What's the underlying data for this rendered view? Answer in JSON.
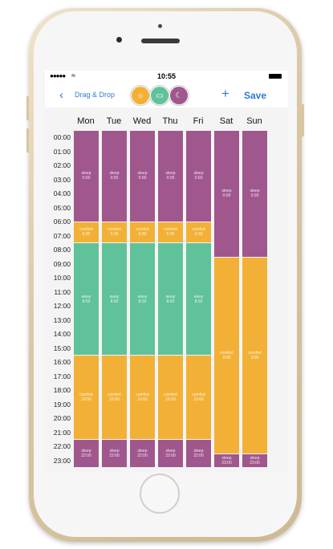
{
  "status_bar": {
    "signal": "●●●●●",
    "wifi": "≈",
    "time": "10:55"
  },
  "nav": {
    "back_label": "Drag & Drop",
    "add_label": "+",
    "save_label": "Save"
  },
  "modes": [
    {
      "name": "comfort",
      "color": "#f2b136",
      "icon": "sun-icon",
      "glyph": "☼"
    },
    {
      "name": "away",
      "color": "#5fc29b",
      "icon": "suitcase-icon",
      "glyph": "▭"
    },
    {
      "name": "sleep",
      "color": "#a0578d",
      "icon": "moon-icon",
      "glyph": "☾"
    }
  ],
  "colors": {
    "comfort": "#f2b136",
    "away": "#5fc29b",
    "sleep": "#a0578d",
    "accent": "#2d7bd6"
  },
  "days": [
    "Mon",
    "Tue",
    "Wed",
    "Thu",
    "Fri",
    "Sat",
    "Sun"
  ],
  "hours": [
    "00:00",
    "01:00",
    "02:00",
    "03:00",
    "04:00",
    "05:00",
    "06:00",
    "07:00",
    "08:00",
    "09:00",
    "10:00",
    "11:00",
    "12:00",
    "13:00",
    "14:00",
    "15:00",
    "16:00",
    "17:00",
    "18:00",
    "19:00",
    "20:00",
    "21:00",
    "22:00",
    "23:00"
  ],
  "schedule": {
    "weekday": [
      {
        "mode": "sleep",
        "label": "sleep",
        "time": "0:00",
        "start": 0,
        "end": 6.5
      },
      {
        "mode": "comfort",
        "label": "comfort",
        "time": "6:30",
        "start": 6.5,
        "end": 8
      },
      {
        "mode": "away",
        "label": "away",
        "time": "8:00",
        "start": 8,
        "end": 16
      },
      {
        "mode": "comfort",
        "label": "comfort",
        "time": "16:00",
        "start": 16,
        "end": 22
      },
      {
        "mode": "sleep",
        "label": "sleep",
        "time": "22:00",
        "start": 22,
        "end": 24
      }
    ],
    "weekend": [
      {
        "mode": "sleep",
        "label": "sleep",
        "time": "0:00",
        "start": 0,
        "end": 9
      },
      {
        "mode": "comfort",
        "label": "comfort",
        "time": "9:00",
        "start": 9,
        "end": 23
      },
      {
        "mode": "sleep",
        "label": "sleep",
        "time": "23:00",
        "start": 23,
        "end": 24
      }
    ]
  }
}
